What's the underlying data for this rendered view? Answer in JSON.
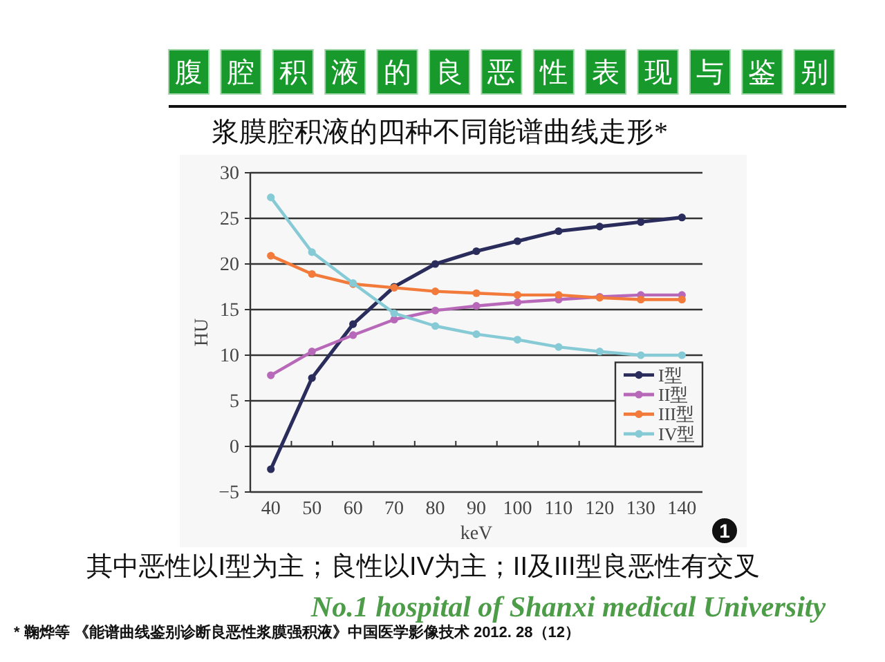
{
  "chart_data": {
    "type": "line",
    "title": "腹腔积液的良恶性表现与鉴别",
    "subtitle": "浆膜腔积液的四种不同能谱曲线走形*",
    "xlabel": "keV",
    "ylabel": "HU",
    "categories": [
      "40",
      "50",
      "60",
      "70",
      "80",
      "90",
      "100",
      "110",
      "120",
      "130",
      "140"
    ],
    "series": [
      {
        "name": "I型",
        "color": "#2a2c5c",
        "values": [
          -2.5,
          7.5,
          13.4,
          17.5,
          20.0,
          21.4,
          22.5,
          23.6,
          24.1,
          24.6,
          25.1
        ]
      },
      {
        "name": "II型",
        "color": "#b868b8",
        "values": [
          7.8,
          10.4,
          12.2,
          13.9,
          14.9,
          15.4,
          15.8,
          16.1,
          16.4,
          16.6,
          16.6
        ]
      },
      {
        "name": "III型",
        "color": "#f27a3a",
        "values": [
          20.9,
          18.9,
          17.8,
          17.4,
          17.0,
          16.8,
          16.6,
          16.6,
          16.3,
          16.1,
          16.1
        ]
      },
      {
        "name": "IV型",
        "color": "#86cad6",
        "values": [
          27.3,
          21.3,
          17.9,
          14.6,
          13.2,
          12.3,
          11.7,
          10.9,
          10.4,
          10.0,
          10.0
        ]
      }
    ],
    "ylim": [
      -5,
      30
    ],
    "yticks": [
      {
        "value": -5,
        "label": "−5"
      },
      0,
      5,
      10,
      15,
      20,
      25,
      30
    ],
    "grid": "y",
    "legend": "bottom right",
    "marker": "circle",
    "line_style": "solid",
    "annotations": [
      "1",
      "其中恶性以I型为主；良性以IV为主；II及III型良恶性有交叉",
      "No.1 hospital of Shanxi medical University",
      "* 鞠烨等 《能谱曲线鉴别诊断良恶性浆膜强积液》中国医学影像技术 2012. 28（12）"
    ]
  }
}
